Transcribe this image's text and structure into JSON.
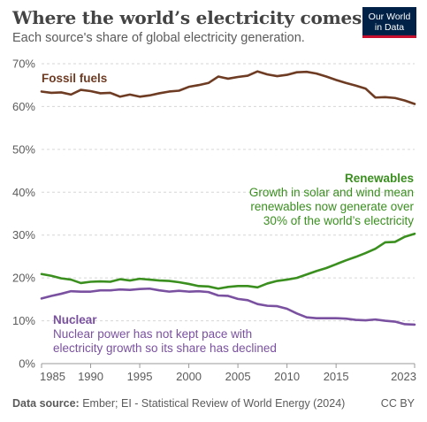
{
  "header": {
    "title": "Where the world’s electricity comes from",
    "subtitle": "Each source's share of global electricity generation.",
    "logo_line1": "Our World",
    "logo_line2": "in Data"
  },
  "footer": {
    "source_label": "Data source:",
    "source_text": "Ember; EI - Statistical Review of World Energy (2024)",
    "license": "CC BY"
  },
  "colors": {
    "fossil": "#6e3b23",
    "renewables": "#3a8f1f",
    "nuclear": "#7a51a0",
    "grid": "#d6d6d6",
    "text": "#5b5b5b"
  },
  "chart_data": {
    "type": "line",
    "title": "Where the world’s electricity comes from",
    "subtitle": "Each source's share of global electricity generation.",
    "xlabel": "",
    "ylabel": "",
    "xlim": [
      1985,
      2023
    ],
    "ylim": [
      0,
      70
    ],
    "y_ticks": [
      0,
      10,
      20,
      30,
      40,
      50,
      60,
      70
    ],
    "y_tick_labels": [
      "0%",
      "10%",
      "20%",
      "30%",
      "40%",
      "50%",
      "60%",
      "70%"
    ],
    "x_ticks": [
      1985,
      1990,
      1995,
      2000,
      2005,
      2010,
      2015,
      2023
    ],
    "x_tick_labels": [
      "1985",
      "1990",
      "1995",
      "2000",
      "2005",
      "2010",
      "2015",
      "2023"
    ],
    "grid": "horizontal dashed",
    "legend": "inline labels",
    "x": [
      1985,
      1986,
      1987,
      1988,
      1989,
      1990,
      1991,
      1992,
      1993,
      1994,
      1995,
      1996,
      1997,
      1998,
      1999,
      2000,
      2001,
      2002,
      2003,
      2004,
      2005,
      2006,
      2007,
      2008,
      2009,
      2010,
      2011,
      2012,
      2013,
      2014,
      2015,
      2016,
      2017,
      2018,
      2019,
      2020,
      2021,
      2022,
      2023
    ],
    "series": [
      {
        "name": "Fossil fuels",
        "color_key": "fossil",
        "values": [
          63.5,
          63.2,
          63.3,
          62.8,
          63.9,
          63.6,
          63.1,
          63.2,
          62.3,
          62.8,
          62.3,
          62.6,
          63.1,
          63.5,
          63.7,
          64.6,
          65.0,
          65.5,
          67.0,
          66.5,
          66.9,
          67.2,
          68.2,
          67.5,
          67.1,
          67.4,
          68.0,
          68.1,
          67.7,
          67.0,
          66.2,
          65.5,
          64.9,
          64.2,
          62.1,
          62.2,
          62.0,
          61.4,
          60.6
        ]
      },
      {
        "name": "Renewables",
        "color_key": "renewables",
        "values": [
          20.9,
          20.5,
          19.9,
          19.6,
          18.8,
          19.1,
          19.2,
          19.1,
          19.7,
          19.4,
          19.8,
          19.6,
          19.4,
          19.3,
          19.0,
          18.6,
          18.1,
          18.0,
          17.5,
          17.9,
          18.1,
          18.1,
          17.8,
          18.7,
          19.3,
          19.6,
          20.0,
          20.8,
          21.6,
          22.3,
          23.2,
          24.1,
          24.9,
          25.8,
          26.8,
          28.3,
          28.4,
          29.6,
          30.3
        ]
      },
      {
        "name": "Nuclear",
        "color_key": "nuclear",
        "values": [
          15.2,
          15.8,
          16.3,
          16.9,
          16.8,
          16.8,
          17.1,
          17.1,
          17.3,
          17.2,
          17.4,
          17.5,
          17.1,
          16.8,
          17.0,
          16.8,
          16.9,
          16.7,
          15.9,
          15.8,
          15.1,
          14.8,
          13.9,
          13.5,
          13.4,
          12.8,
          11.7,
          10.8,
          10.6,
          10.6,
          10.6,
          10.5,
          10.2,
          10.1,
          10.3,
          10.0,
          9.8,
          9.2,
          9.1
        ]
      }
    ],
    "annotations": {
      "fossil": {
        "label": "Fossil fuels"
      },
      "renewables": {
        "label": "Renewables",
        "lines": [
          "Growth in solar and wind mean",
          "renewables now generate over",
          "30% of the world’s electricity"
        ]
      },
      "nuclear": {
        "label": "Nuclear",
        "lines": [
          "Nuclear power has not kept pace with",
          "electricity growth so its share has declined"
        ]
      }
    }
  }
}
